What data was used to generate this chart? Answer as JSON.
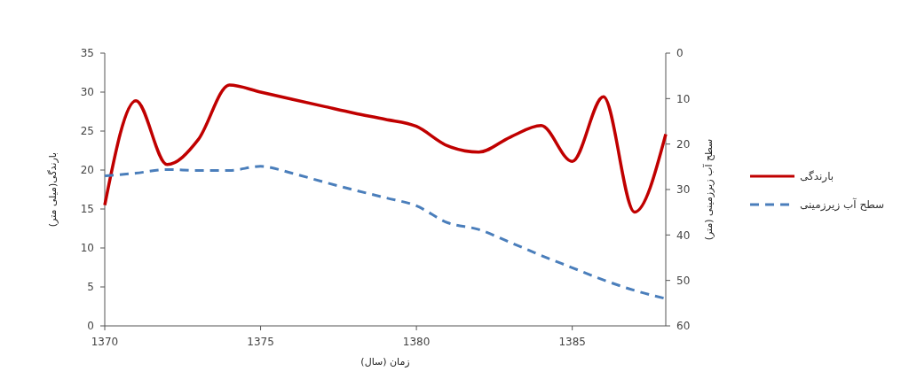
{
  "chart_data": {
    "type": "line",
    "xlabel": "زمان (سال)",
    "ylabel": "بارندگی(میلی متر)",
    "y2label": "سطح آب زیرزمینی (متر)",
    "x": [
      1370,
      1371,
      1372,
      1373,
      1374,
      1375,
      1376,
      1377,
      1378,
      1379,
      1380,
      1381,
      1382,
      1383,
      1384,
      1385,
      1386,
      1387,
      1388
    ],
    "series": [
      {
        "name": "بارندگی",
        "color": "#c00000",
        "line_style": "solid",
        "values": [
          15.5,
          28.9,
          20.7,
          23.9,
          30.9,
          30,
          29.1,
          28.2,
          27.3,
          26.5,
          25.6,
          23.1,
          22.3,
          24.2,
          25.7,
          21.1,
          29.4,
          14.6,
          24.6
        ]
      },
      {
        "name": "سطح آب زیرزمینی",
        "color": "#4a7ebb",
        "line_style": "dashed",
        "axis": "y2",
        "values": [
          27,
          26.4,
          25.6,
          25.8,
          25.8,
          24.9,
          26.4,
          28.3,
          30.1,
          31.8,
          33.6,
          37.3,
          38.8,
          41.6,
          44.5,
          47.2,
          49.9,
          52.2,
          54
        ]
      }
    ],
    "xlim": [
      1370,
      1388
    ],
    "xticks": [
      1370,
      1375,
      1380,
      1385
    ],
    "ylim": [
      0,
      35
    ],
    "yticks": [
      0,
      5,
      10,
      15,
      20,
      25,
      30,
      35
    ],
    "y2lim": [
      60,
      0
    ],
    "y2ticks": [
      0,
      10,
      20,
      30,
      40,
      50,
      60
    ],
    "grid": false,
    "legend": "right",
    "marker": "none"
  }
}
